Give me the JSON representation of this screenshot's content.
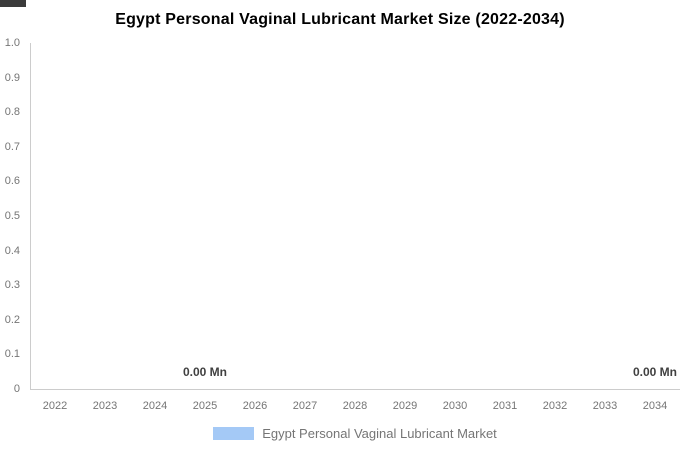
{
  "chart_data": {
    "type": "bar",
    "title": "Egypt Personal Vaginal Lubricant Market Size (2022-2034)",
    "categories": [
      "2022",
      "2023",
      "2024",
      "2025",
      "2026",
      "2027",
      "2028",
      "2029",
      "2030",
      "2031",
      "2032",
      "2033",
      "2034"
    ],
    "series": [
      {
        "name": "Egypt Personal Vaginal Lubricant Market",
        "color": "#A4C9F6",
        "values": [
          0.0,
          0.0,
          0.0,
          0.0,
          0.0,
          0.0,
          0.0,
          0.0,
          0.0,
          0.0,
          0.0,
          0.0,
          0.0
        ]
      }
    ],
    "value_unit": "Mn",
    "annotations": [
      {
        "category": "2025",
        "label": "0.00 Mn"
      },
      {
        "category": "2034",
        "label": "0.00 Mn"
      }
    ],
    "y_ticks": [
      "1.0",
      "0.9",
      "0.8",
      "0.7",
      "0.6",
      "0.5",
      "0.4",
      "0.3",
      "0.2",
      "0.1",
      "0"
    ],
    "ylim": [
      0,
      1
    ],
    "xlabel": "",
    "ylabel": "",
    "grid": false,
    "legend_position": "bottom"
  },
  "legend": {
    "label": "Egypt Personal Vaginal Lubricant Market",
    "swatch_color": "#A4C9F6"
  },
  "colors": {
    "background": "#ffffff",
    "title": "#000000",
    "axis_line": "#cccccc",
    "tick_label": "#757575",
    "annotation": "#404040",
    "series": "#A4C9F6",
    "artifact_bar": "#3b3b3b"
  }
}
